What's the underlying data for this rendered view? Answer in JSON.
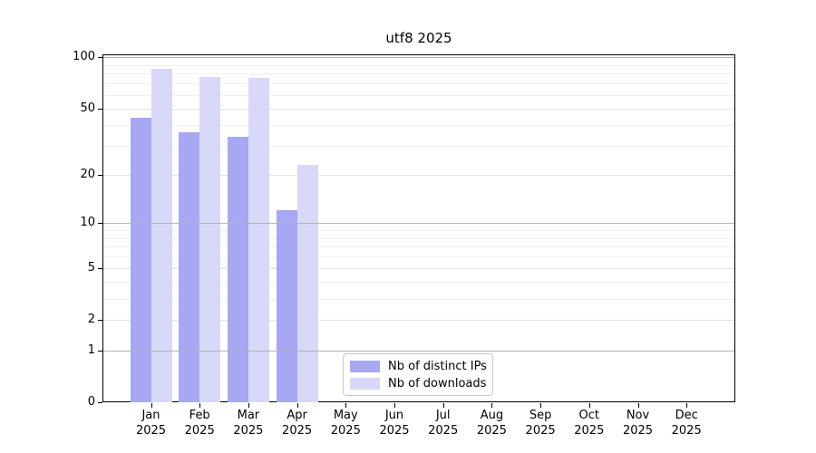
{
  "chart_data": {
    "type": "bar",
    "title": "utf8 2025",
    "categories": [
      "Jan",
      "Feb",
      "Mar",
      "Apr",
      "May",
      "Jun",
      "Jul",
      "Aug",
      "Sep",
      "Oct",
      "Nov",
      "Dec"
    ],
    "category_year": "2025",
    "series": [
      {
        "name": "Nb of distinct IPs",
        "color": "#a7a7f2",
        "values": [
          44,
          36,
          34,
          12,
          0,
          0,
          0,
          0,
          0,
          0,
          0,
          0
        ]
      },
      {
        "name": "Nb of downloads",
        "color": "#d8d8f8",
        "values": [
          85,
          77,
          76,
          23,
          0,
          0,
          0,
          0,
          0,
          0,
          0,
          0
        ]
      }
    ],
    "xlabel": "",
    "ylabel": "",
    "yscale": "log1p",
    "ylim": [
      0,
      105
    ],
    "yticks": [
      0,
      1,
      2,
      5,
      10,
      20,
      50,
      100
    ],
    "grid": {
      "minor_values": [
        3,
        4,
        6,
        7,
        8,
        9,
        30,
        40,
        60,
        70,
        80,
        90
      ],
      "major_values": [
        2,
        5,
        20,
        50
      ],
      "emphasis_values": [
        1,
        10,
        100
      ],
      "minor_color": "#efefef",
      "major_color": "#e3e3e3",
      "emphasis_color": "#b4b4b4"
    },
    "legend": {
      "position": "inside-bottom-center",
      "border_color": "#c9c9c9"
    },
    "axis_color": "#000000",
    "background_color": "#ffffff"
  }
}
